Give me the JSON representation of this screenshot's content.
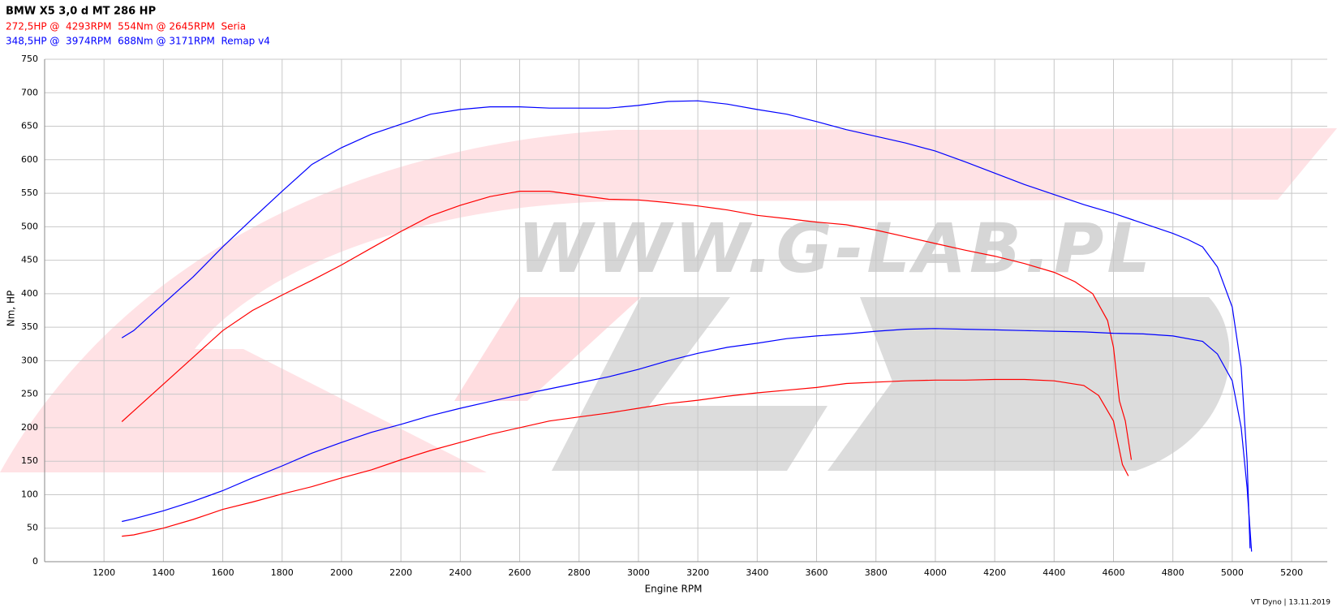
{
  "chart_data": {
    "type": "line",
    "title": "BMW X5 3,0 d MT 286 HP",
    "legend": [
      {
        "text": "272,5HP @  4293RPM  554Nm @ 2645RPM  Seria",
        "color": "#ff0000"
      },
      {
        "text": "348,5HP @  3974RPM  688Nm @ 3171RPM  Remap v4",
        "color": "#0000ff"
      }
    ],
    "x_label": "Engine RPM",
    "y_label": "Nm, HP",
    "watermark": "WWW.G-LAB.PL",
    "footer": "VT Dyno | 13.11.2019",
    "xlim": [
      1000,
      5320
    ],
    "ylim": [
      0,
      750
    ],
    "xticks": [
      1200,
      1400,
      1600,
      1800,
      2000,
      2200,
      2400,
      2600,
      2800,
      3000,
      3200,
      3400,
      3600,
      3800,
      4000,
      4200,
      4400,
      4600,
      4800,
      5000,
      5200
    ],
    "yticks": [
      0,
      50,
      100,
      150,
      200,
      250,
      300,
      350,
      400,
      450,
      500,
      550,
      600,
      650,
      700,
      750
    ],
    "grid": true,
    "series": [
      {
        "color": "#0000ff",
        "x": [
          1260,
          1300,
          1400,
          1500,
          1600,
          1700,
          1800,
          1900,
          2000,
          2100,
          2200,
          2300,
          2400,
          2500,
          2600,
          2700,
          2800,
          2900,
          3000,
          3100,
          3200,
          3300,
          3400,
          3500,
          3600,
          3700,
          3800,
          3900,
          4000,
          4100,
          4200,
          4300,
          4400,
          4500,
          4600,
          4700,
          4800,
          4850,
          4900,
          4950,
          5000,
          5030,
          5050,
          5060
        ],
        "values": [
          334,
          345,
          385,
          425,
          470,
          512,
          553,
          593,
          618,
          638,
          653,
          668,
          675,
          679,
          679,
          677,
          677,
          677,
          681,
          687,
          688,
          683,
          675,
          668,
          657,
          645,
          635,
          625,
          613,
          597,
          580,
          563,
          548,
          533,
          520,
          505,
          490,
          481,
          470,
          440,
          380,
          290,
          150,
          20
        ]
      },
      {
        "color": "#ff0000",
        "x": [
          1260,
          1300,
          1400,
          1500,
          1600,
          1700,
          1800,
          1900,
          2000,
          2100,
          2200,
          2300,
          2400,
          2500,
          2600,
          2700,
          2800,
          2900,
          3000,
          3100,
          3200,
          3300,
          3400,
          3500,
          3600,
          3700,
          3800,
          3900,
          4000,
          4100,
          4200,
          4300,
          4400,
          4470,
          4530,
          4580,
          4600,
          4620,
          4640,
          4660
        ],
        "values": [
          209,
          225,
          265,
          305,
          345,
          375,
          398,
          420,
          443,
          468,
          493,
          516,
          532,
          545,
          553,
          553,
          547,
          541,
          540,
          536,
          531,
          525,
          517,
          512,
          507,
          503,
          495,
          485,
          475,
          465,
          456,
          445,
          432,
          418,
          400,
          360,
          320,
          240,
          210,
          152
        ]
      },
      {
        "color": "#0000ff",
        "x": [
          1260,
          1300,
          1400,
          1500,
          1600,
          1700,
          1800,
          1900,
          2000,
          2100,
          2200,
          2300,
          2400,
          2500,
          2600,
          2700,
          2800,
          2900,
          3000,
          3100,
          3200,
          3300,
          3400,
          3500,
          3600,
          3700,
          3800,
          3900,
          4000,
          4100,
          4200,
          4300,
          4400,
          4500,
          4600,
          4700,
          4800,
          4900,
          4950,
          5000,
          5030,
          5050,
          5065
        ],
        "values": [
          60,
          64,
          76,
          90,
          106,
          125,
          143,
          162,
          178,
          193,
          205,
          218,
          229,
          239,
          249,
          258,
          267,
          276,
          287,
          300,
          311,
          320,
          326,
          333,
          337,
          340,
          344,
          347,
          348,
          347,
          346,
          345,
          344,
          343,
          341,
          340,
          337,
          329,
          310,
          270,
          200,
          110,
          15
        ]
      },
      {
        "color": "#ff0000",
        "x": [
          1260,
          1300,
          1400,
          1500,
          1600,
          1700,
          1800,
          1900,
          2000,
          2100,
          2200,
          2300,
          2400,
          2500,
          2600,
          2700,
          2800,
          2900,
          3000,
          3100,
          3200,
          3300,
          3400,
          3500,
          3600,
          3700,
          3800,
          3900,
          4000,
          4100,
          4200,
          4300,
          4400,
          4500,
          4550,
          4600,
          4630,
          4650
        ],
        "values": [
          38,
          40,
          50,
          63,
          78,
          89,
          101,
          112,
          125,
          137,
          152,
          166,
          178,
          190,
          200,
          210,
          216,
          222,
          229,
          236,
          241,
          247,
          252,
          256,
          260,
          266,
          268,
          270,
          271,
          271,
          272,
          272,
          270,
          263,
          248,
          210,
          145,
          128
        ]
      }
    ]
  }
}
